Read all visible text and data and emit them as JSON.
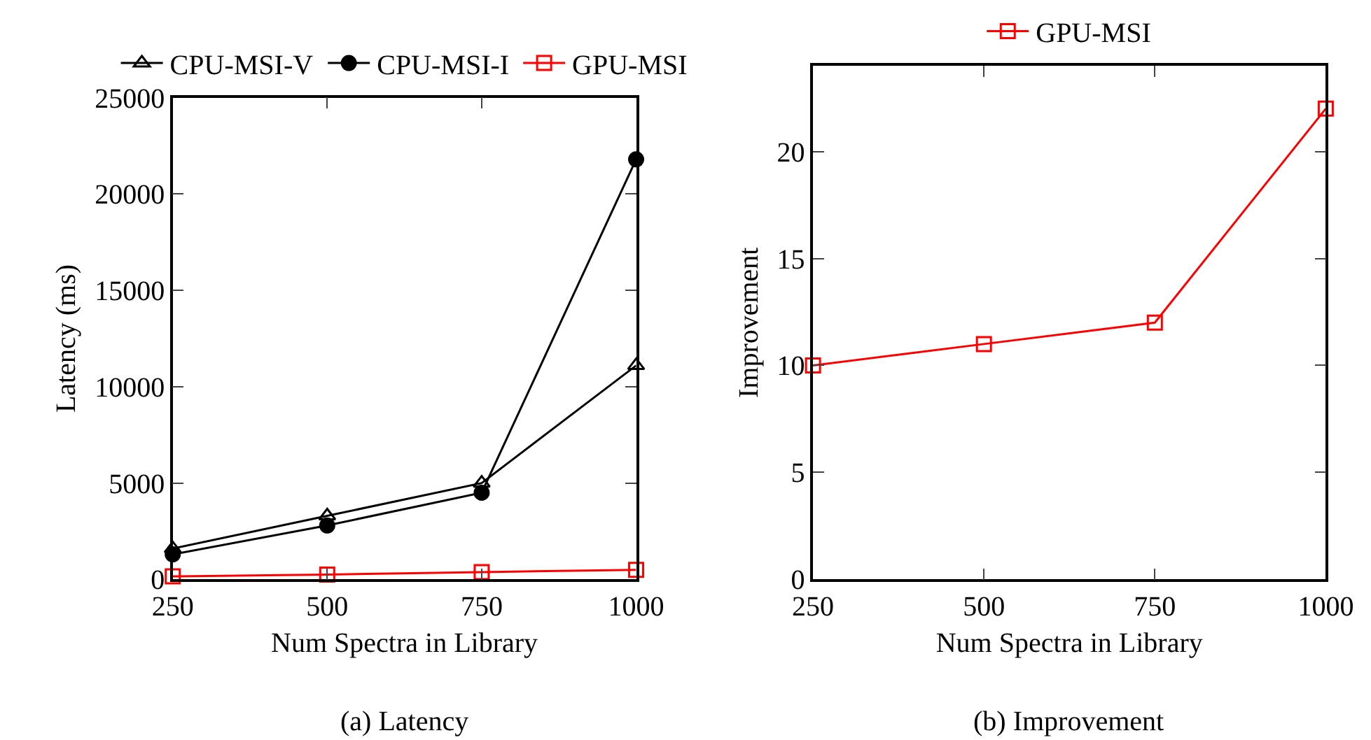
{
  "chart_data": [
    {
      "type": "line",
      "title": "(a) Latency",
      "xlabel": "Num Spectra in Library",
      "ylabel": "Latency (ms)",
      "x": [
        250,
        500,
        750,
        1000
      ],
      "xlim": [
        250,
        1000
      ],
      "xticks": [
        250,
        500,
        750,
        1000
      ],
      "ylim": [
        0,
        25000
      ],
      "yticks": [
        0,
        5000,
        10000,
        15000,
        20000,
        25000
      ],
      "legend": "top",
      "line_style": "solid",
      "series": [
        {
          "name": "CPU-MSI-V",
          "color": "#000000",
          "marker": "triangle",
          "values": [
            1600,
            3300,
            5000,
            11100
          ]
        },
        {
          "name": "CPU-MSI-I",
          "color": "#000000",
          "marker": "circle",
          "values": [
            1300,
            2800,
            4500,
            21800
          ]
        },
        {
          "name": "GPU-MSI",
          "color": "#ff0000",
          "marker": "square",
          "values": [
            160,
            250,
            380,
            500
          ]
        }
      ]
    },
    {
      "type": "line",
      "title": "(b) Improvement",
      "xlabel": "Num Spectra in Library",
      "ylabel": "Improvement",
      "x": [
        250,
        500,
        750,
        1000
      ],
      "xlim": [
        250,
        1000
      ],
      "xticks": [
        250,
        500,
        750,
        1000
      ],
      "ylim": [
        0,
        24
      ],
      "yticks": [
        0,
        5,
        10,
        15,
        20
      ],
      "legend": "top",
      "line_style": "solid",
      "series": [
        {
          "name": "GPU-MSI",
          "color": "#ff0000",
          "marker": "square",
          "values": [
            10,
            11,
            12,
            22
          ]
        }
      ]
    }
  ]
}
